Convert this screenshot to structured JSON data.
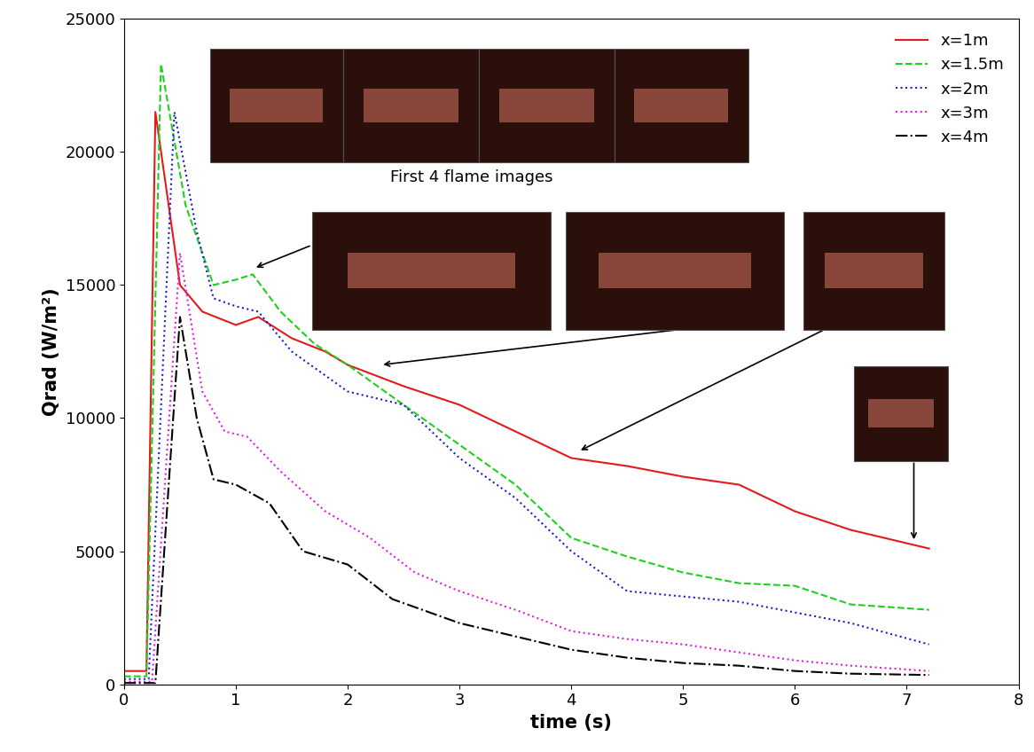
{
  "chart_data": {
    "type": "line",
    "x_label": "time (s)",
    "y_label": "Qrad (W/m²)",
    "annotations": [
      "First 4 flame images"
    ],
    "xlim": [
      0,
      8
    ],
    "xticks": [
      0,
      1,
      2,
      3,
      4,
      5,
      6,
      7,
      8
    ],
    "ylim": [
      0,
      25000
    ],
    "yticks": [
      0,
      5000,
      10000,
      15000,
      20000,
      25000
    ],
    "legend": "upper right",
    "grid": false,
    "series": [
      {
        "name": "x=1m",
        "color": "#e41a1c",
        "line_style": "solid",
        "x": [
          0,
          0.2,
          0.28,
          0.5,
          0.7,
          1.0,
          1.2,
          1.5,
          1.8,
          2.0,
          2.5,
          3.0,
          3.5,
          4.0,
          4.5,
          5.0,
          5.5,
          6.0,
          6.5,
          7.2
        ],
        "values": [
          500,
          500,
          21500,
          15000,
          14000,
          13500,
          13800,
          13000,
          12500,
          12000,
          11200,
          10500,
          9500,
          8500,
          8200,
          7800,
          7500,
          6500,
          5800,
          5100
        ]
      },
      {
        "name": "x=1.5m",
        "color": "#1fd01f",
        "line_style": "dashed",
        "x": [
          0,
          0.2,
          0.33,
          0.55,
          0.8,
          1.0,
          1.15,
          1.4,
          1.7,
          2.0,
          2.5,
          3.0,
          3.5,
          4.0,
          4.5,
          5.0,
          5.5,
          6.0,
          6.5,
          7.2
        ],
        "values": [
          300,
          300,
          23300,
          18000,
          15000,
          15200,
          15400,
          14000,
          12800,
          12000,
          10500,
          9000,
          7500,
          5500,
          4800,
          4200,
          3800,
          3700,
          3000,
          2800
        ]
      },
      {
        "name": "x=2m",
        "color": "#1f1fd0",
        "line_style": "dotted",
        "x": [
          0,
          0.22,
          0.45,
          0.65,
          0.8,
          1.0,
          1.2,
          1.5,
          2.0,
          2.5,
          3.0,
          3.5,
          4.0,
          4.5,
          5.0,
          5.5,
          6.0,
          6.5,
          7.2
        ],
        "values": [
          200,
          200,
          21500,
          17000,
          14500,
          14200,
          14000,
          12500,
          11000,
          10500,
          8500,
          7000,
          5000,
          3500,
          3300,
          3100,
          2700,
          2300,
          1500
        ]
      },
      {
        "name": "x=3m",
        "color": "#e020e0",
        "line_style": "dotted",
        "x": [
          0,
          0.25,
          0.5,
          0.7,
          0.9,
          1.1,
          1.4,
          1.8,
          2.2,
          2.6,
          3.0,
          3.5,
          4.0,
          4.5,
          5.0,
          5.5,
          6.0,
          6.5,
          7.2
        ],
        "values": [
          100,
          100,
          16200,
          11000,
          9500,
          9300,
          8000,
          6500,
          5500,
          4200,
          3500,
          2800,
          2000,
          1700,
          1500,
          1200,
          900,
          700,
          500
        ]
      },
      {
        "name": "x=4m",
        "color": "#000000",
        "line_style": "dashdot",
        "x": [
          0,
          0.28,
          0.5,
          0.65,
          0.8,
          1.0,
          1.3,
          1.6,
          2.0,
          2.4,
          2.8,
          3.0,
          3.5,
          4.0,
          4.5,
          5.0,
          5.5,
          6.0,
          6.5,
          7.2
        ],
        "values": [
          50,
          50,
          13800,
          10000,
          7700,
          7500,
          6800,
          5000,
          4500,
          3200,
          2600,
          2300,
          1800,
          1300,
          1000,
          800,
          700,
          500,
          400,
          350
        ]
      }
    ]
  }
}
